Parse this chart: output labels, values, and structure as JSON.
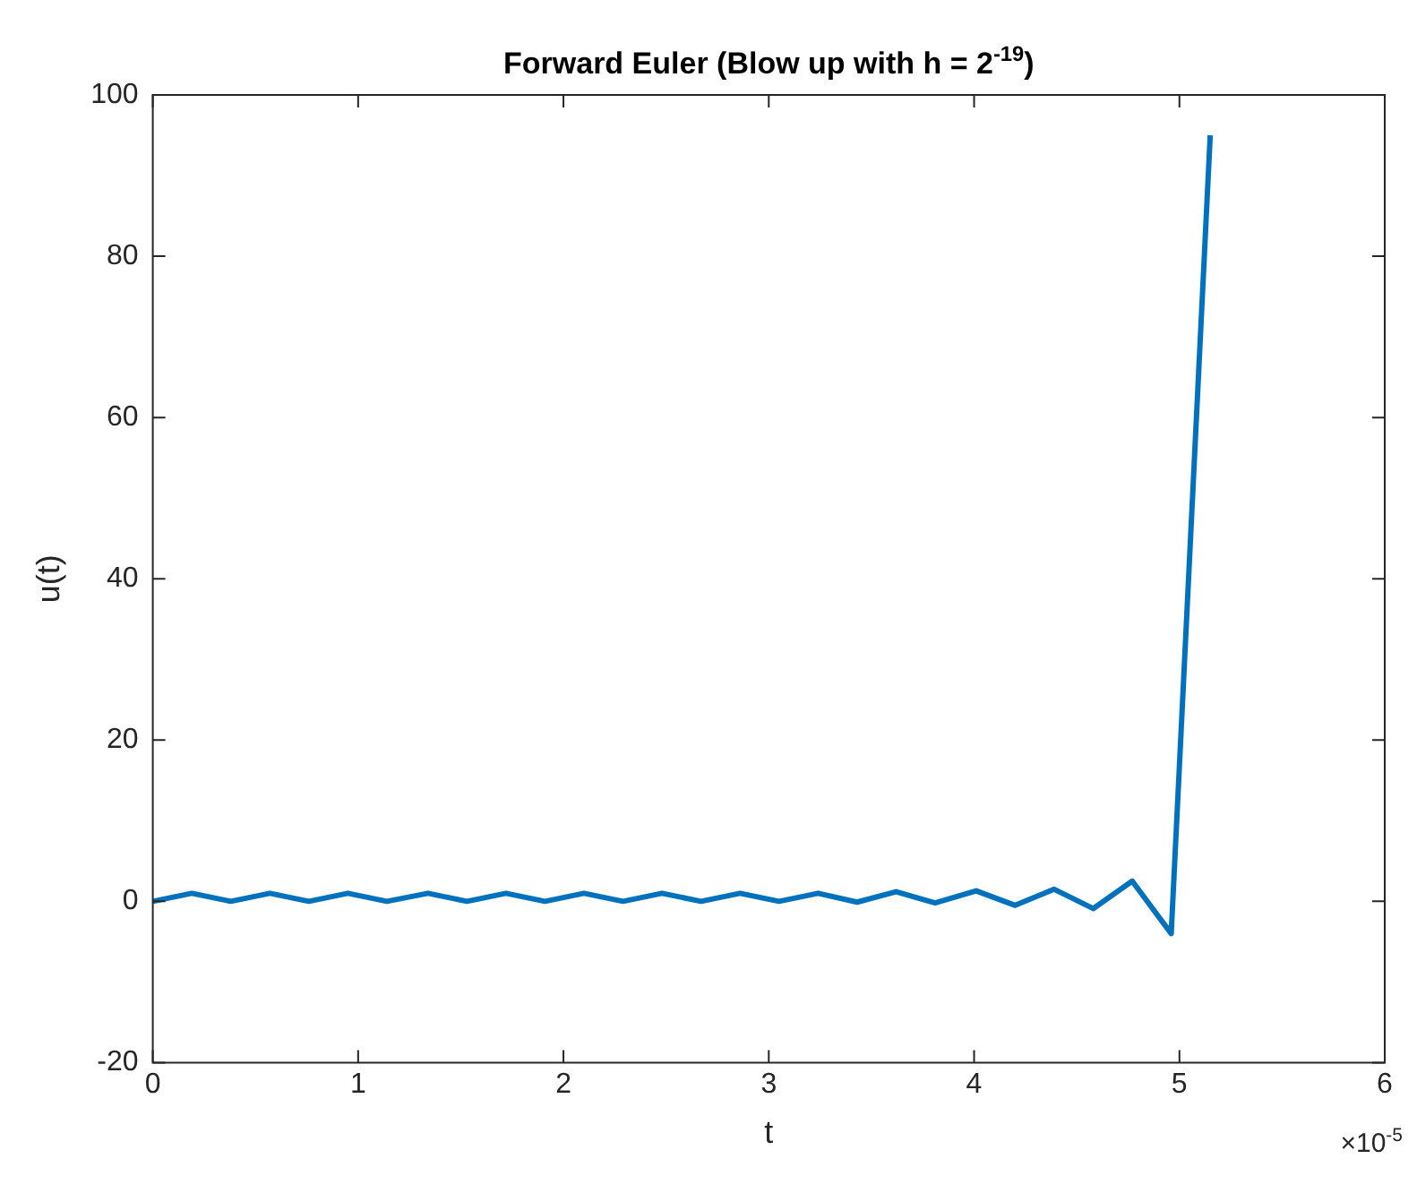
{
  "chart_data": {
    "type": "line",
    "title": "Forward Euler (Blow up with h = 2$^{-19}$)",
    "xlabel": "t",
    "ylabel": "u(t)",
    "annotations": [
      "×10$^{-5}$"
    ],
    "x": [
      0,
      0.19,
      0.38,
      0.57,
      0.76,
      0.95,
      1.14,
      1.34,
      1.53,
      1.72,
      1.91,
      2.1,
      2.29,
      2.48,
      2.67,
      2.86,
      3.05,
      3.24,
      3.43,
      3.62,
      3.81,
      4.01,
      4.2,
      4.39,
      4.58,
      4.77,
      4.96,
      5.15
    ],
    "series": [
      {
        "color": "#0072bd",
        "values": [
          0,
          1,
          0,
          1,
          0,
          1,
          0,
          1,
          0,
          1,
          0,
          1,
          0,
          1,
          0,
          1,
          0,
          1,
          -0.1,
          1.2,
          -0.2,
          1.3,
          -0.5,
          1.5,
          -0.9,
          2.5,
          -4,
          95
        ]
      }
    ],
    "xlim": [
      0,
      6
    ],
    "xticks": [
      0,
      1,
      2,
      3,
      4,
      5,
      6
    ],
    "ylim": [
      -20,
      100
    ],
    "yticks": [
      -20,
      0,
      20,
      40,
      60,
      80,
      100
    ],
    "grid": false,
    "legend": false,
    "marker": "none",
    "line_style": "solid"
  }
}
